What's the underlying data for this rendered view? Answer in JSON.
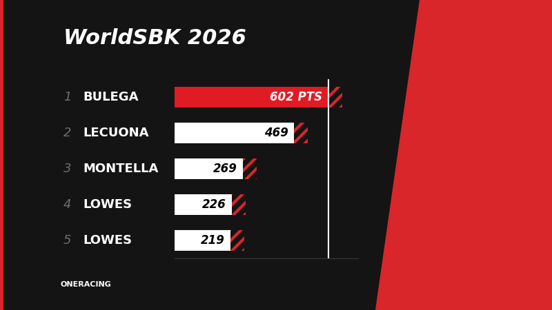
{
  "chart_data": {
    "type": "bar",
    "orientation": "horizontal",
    "title": "WorldSBK 2026",
    "ranks": [
      1,
      2,
      3,
      4,
      5
    ],
    "categories": [
      "BULEGA",
      "LECUONA",
      "MONTELLA",
      "LOWES",
      "LOWES"
    ],
    "values": [
      602,
      469,
      269,
      226,
      219
    ],
    "value_labels": [
      "602 PTS",
      "469",
      "269",
      "226",
      "219"
    ],
    "colors": [
      "#e01b24",
      "#ffffff",
      "#ffffff",
      "#ffffff",
      "#ffffff"
    ],
    "xlim": [
      0,
      720
    ],
    "xticks": [],
    "tick_labels": false,
    "data_labels": true,
    "grid": false,
    "source": "ONERACING"
  }
}
